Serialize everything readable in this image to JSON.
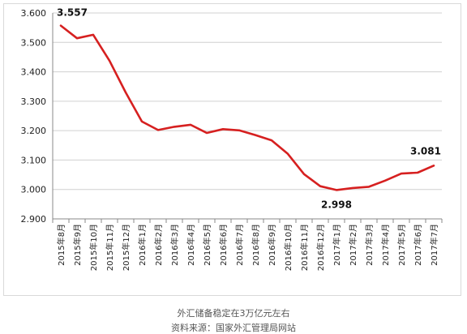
{
  "chart_data": {
    "type": "line",
    "title": "",
    "xlabel": "",
    "ylabel": "",
    "ylim": [
      2.9,
      3.6
    ],
    "yticks": [
      "2.900",
      "3.000",
      "3.100",
      "3.200",
      "3.300",
      "3.400",
      "3.500",
      "3.600"
    ],
    "grid": true,
    "legend": "none",
    "categories": [
      "2015年8月",
      "2015年9月",
      "2015年10月",
      "2015年11月",
      "2015年12月",
      "2016年1月",
      "2016年2月",
      "2016年3月",
      "2016年4月",
      "2016年5月",
      "2016年6月",
      "2016年7月",
      "2016年8月",
      "2016年9月",
      "2016年10月",
      "2016年11月",
      "2016年12月",
      "2017年1月",
      "2017年2月",
      "2017年3月",
      "2017年4月",
      "2017年5月",
      "2017年6月",
      "2017年7月"
    ],
    "series": [
      {
        "color": "#d62020",
        "values": [
          3.557,
          3.514,
          3.526,
          3.438,
          3.33,
          3.231,
          3.202,
          3.213,
          3.22,
          3.192,
          3.205,
          3.201,
          3.185,
          3.167,
          3.121,
          3.052,
          3.011,
          2.998,
          3.005,
          3.009,
          3.03,
          3.054,
          3.057,
          3.081
        ]
      }
    ],
    "annotations": [
      {
        "index": 0,
        "label": "3.557"
      },
      {
        "index": 17,
        "label": "2.998"
      },
      {
        "index": 23,
        "label": "3.081"
      }
    ]
  },
  "captions": {
    "title": "外汇储备稳定在3万亿元左右",
    "source": "资料来源：国家外汇管理局网站"
  }
}
